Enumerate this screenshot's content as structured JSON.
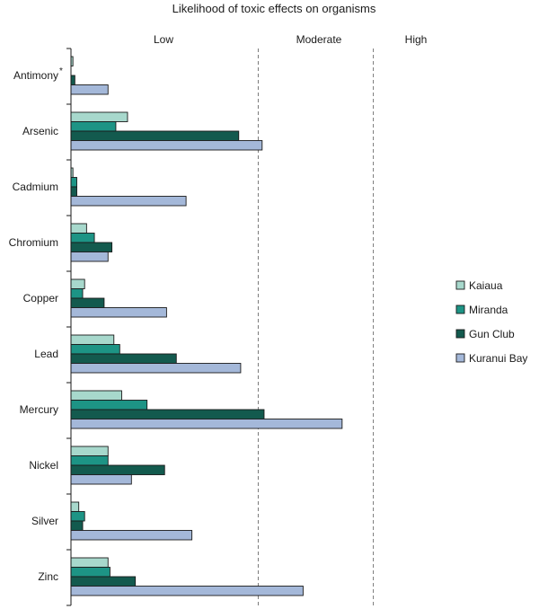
{
  "chart_data": {
    "type": "bar",
    "orientation": "horizontal",
    "title": "Likelihood of toxic effects on organisms",
    "zones": [
      "Low",
      "Moderate",
      "High"
    ],
    "categories": [
      "Antimony",
      "Arsenic",
      "Cadmium",
      "Chromium",
      "Copper",
      "Lead",
      "Mercury",
      "Nickel",
      "Silver",
      "Zinc"
    ],
    "category_note": {
      "Antimony": "*"
    },
    "series": [
      {
        "name": "Kaiaua",
        "color": "#a7d8cc",
        "values": [
          0.01,
          0.29,
          0.01,
          0.08,
          0.07,
          0.22,
          0.26,
          0.19,
          0.04,
          0.19
        ]
      },
      {
        "name": "Miranda",
        "color": "#1d9485",
        "values": [
          0.0,
          0.23,
          0.03,
          0.12,
          0.06,
          0.25,
          0.39,
          0.19,
          0.07,
          0.2
        ]
      },
      {
        "name": "Gun Club",
        "color": "#135a4e",
        "values": [
          0.02,
          0.86,
          0.03,
          0.21,
          0.17,
          0.54,
          0.99,
          0.48,
          0.06,
          0.33
        ]
      },
      {
        "name": "Kuranui Bay",
        "color": "#a4b8d9",
        "values": [
          0.19,
          0.98,
          0.59,
          0.19,
          0.49,
          0.87,
          1.39,
          0.31,
          0.62,
          1.19
        ]
      }
    ],
    "thresholds": [
      0.96,
      1.55
    ],
    "xlim": [
      0,
      1.575
    ],
    "gridlines": "dashed at zone boundaries",
    "legend_position": "right"
  }
}
